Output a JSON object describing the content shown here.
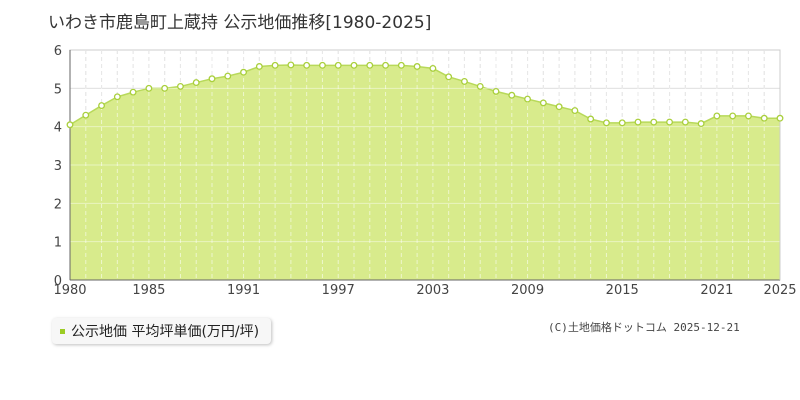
{
  "chart_data": {
    "type": "area",
    "title": "いわき市鹿島町上蔵持 公示地価推移[1980-2025]",
    "x": [
      1980,
      1981,
      1982,
      1983,
      1984,
      1985,
      1986,
      1987,
      1988,
      1989,
      1990,
      1991,
      1992,
      1993,
      1994,
      1995,
      1996,
      1997,
      1998,
      1999,
      2000,
      2001,
      2002,
      2003,
      2004,
      2005,
      2006,
      2007,
      2008,
      2009,
      2010,
      2011,
      2012,
      2013,
      2014,
      2015,
      2016,
      2017,
      2018,
      2019,
      2020,
      2021,
      2022,
      2023,
      2024,
      2025
    ],
    "series": [
      {
        "name": "公示地価 平均坪単価(万円/坪)",
        "values": [
          4.05,
          4.3,
          4.55,
          4.78,
          4.9,
          5.0,
          5.0,
          5.05,
          5.15,
          5.25,
          5.32,
          5.42,
          5.57,
          5.6,
          5.61,
          5.6,
          5.6,
          5.6,
          5.6,
          5.6,
          5.6,
          5.6,
          5.57,
          5.52,
          5.3,
          5.18,
          5.05,
          4.92,
          4.82,
          4.72,
          4.62,
          4.52,
          4.42,
          4.2,
          4.1,
          4.1,
          4.12,
          4.12,
          4.12,
          4.12,
          4.08,
          4.28,
          4.28,
          4.28,
          4.22,
          4.22
        ]
      }
    ],
    "xticks": [
      "1980",
      "1985",
      "1991",
      "1997",
      "2003",
      "2009",
      "2015",
      "2021",
      "2025"
    ],
    "yticks": [
      "0",
      "1",
      "2",
      "3",
      "4",
      "5",
      "6"
    ],
    "ylim": [
      0,
      6
    ],
    "xlim": [
      1980,
      2025
    ],
    "grid": true,
    "legend": "bottom-left",
    "colors": {
      "fill": "#d8eb8c",
      "line": "#b8d95a",
      "marker_stroke": "#a9cf3c",
      "marker_fill": "#ffffff",
      "legend_swatch": "#9ccc24",
      "grid": "#cccccc"
    }
  },
  "legend_label": "公示地価 平均坪単価(万円/坪)",
  "credit": "(C)土地価格ドットコム 2025-12-21"
}
